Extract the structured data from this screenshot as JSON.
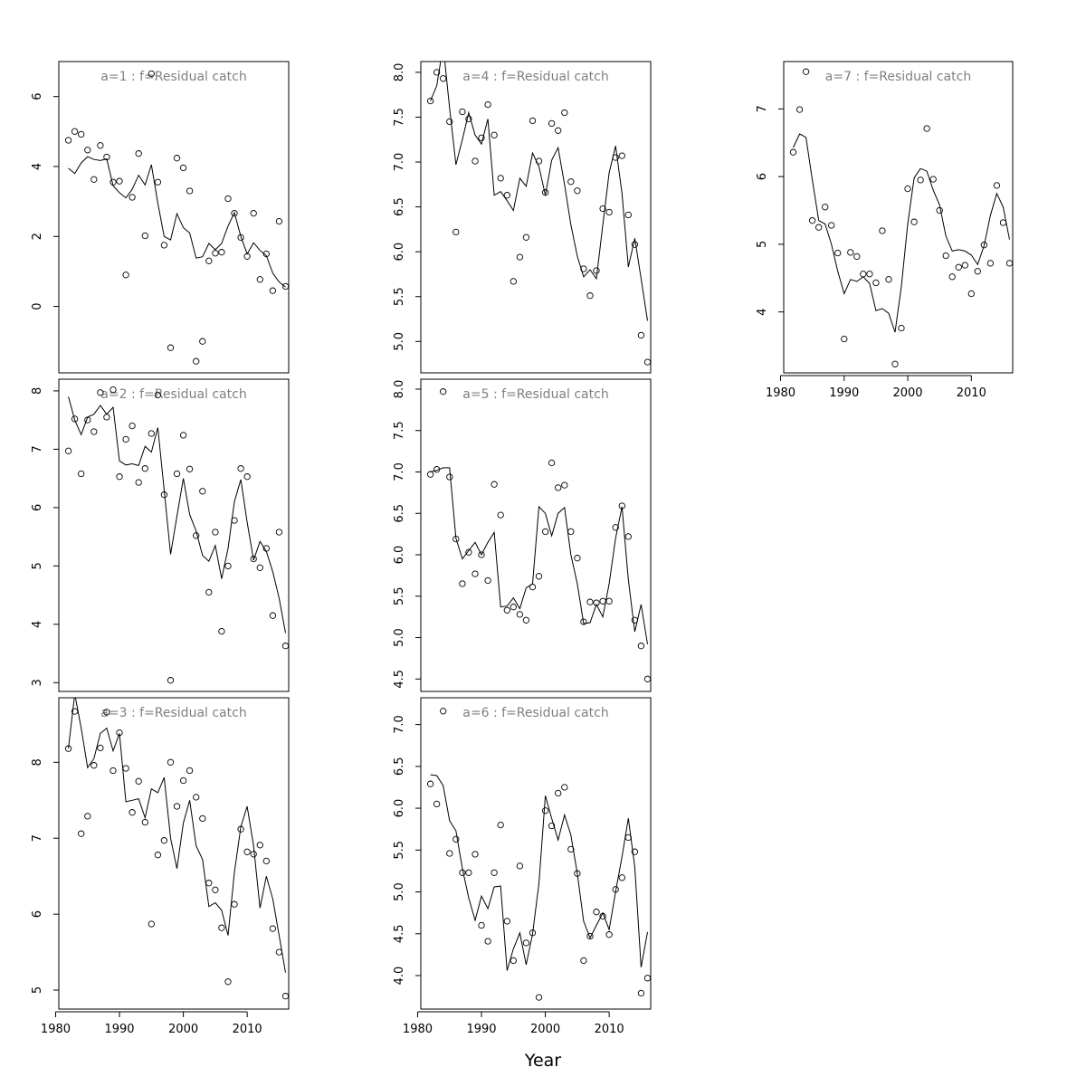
{
  "xlabel": "Year",
  "chart_data": [
    {
      "type": "scatter",
      "title": "a=1  :  f=Residual catch",
      "x_ticks": [
        1980,
        1990,
        2000,
        2010
      ],
      "y_ticks": [
        0,
        2,
        4,
        6
      ],
      "xlim": [
        1980.5,
        2016.5
      ],
      "ylim": [
        -1.9,
        7.0
      ],
      "years_start": 1982,
      "series": [
        {
          "style": "points",
          "values": [
            4.75,
            5.0,
            4.92,
            4.47,
            3.63,
            4.6,
            4.27,
            3.55,
            3.58,
            0.9,
            3.12,
            4.37,
            2.02,
            6.65,
            3.55,
            1.75,
            -1.18,
            4.24,
            3.96,
            3.3,
            -1.57,
            -1.0,
            1.3,
            1.52,
            1.55,
            3.08,
            2.66,
            1.97,
            1.43,
            2.66,
            0.77,
            1.5,
            0.45,
            2.43,
            0.57
          ]
        },
        {
          "style": "line",
          "values": [
            3.95,
            3.8,
            4.1,
            4.28,
            4.2,
            4.17,
            4.22,
            3.45,
            3.25,
            3.1,
            3.35,
            3.75,
            3.47,
            4.05,
            2.95,
            2.0,
            1.9,
            2.65,
            2.25,
            2.1,
            1.38,
            1.42,
            1.8,
            1.62,
            1.8,
            2.3,
            2.68,
            2.0,
            1.5,
            1.82,
            1.6,
            1.45,
            0.95,
            0.7,
            0.55
          ]
        }
      ]
    },
    {
      "type": "scatter",
      "title": "a=2  :  f=Residual catch",
      "x_ticks": [
        1980,
        1990,
        2000,
        2010
      ],
      "y_ticks": [
        3,
        4,
        5,
        6,
        7,
        8
      ],
      "xlim": [
        1980.5,
        2016.5
      ],
      "ylim": [
        2.85,
        8.2
      ],
      "years_start": 1982,
      "series": [
        {
          "style": "points",
          "values": [
            6.97,
            7.52,
            6.58,
            7.5,
            7.3,
            7.97,
            7.55,
            8.02,
            6.53,
            7.17,
            7.4,
            6.43,
            6.67,
            7.27,
            7.93,
            6.22,
            3.04,
            6.58,
            7.24,
            6.66,
            5.52,
            6.28,
            4.55,
            5.58,
            3.88,
            5.0,
            5.78,
            6.67,
            6.53,
            5.12,
            4.97,
            5.3,
            4.15,
            5.58,
            3.63
          ]
        },
        {
          "style": "line",
          "values": [
            7.9,
            7.5,
            7.25,
            7.55,
            7.6,
            7.75,
            7.6,
            7.72,
            6.8,
            6.73,
            6.75,
            6.72,
            7.05,
            6.95,
            7.37,
            6.3,
            5.2,
            5.85,
            6.5,
            5.88,
            5.6,
            5.18,
            5.08,
            5.35,
            4.78,
            5.3,
            6.1,
            6.48,
            5.75,
            5.1,
            5.42,
            5.25,
            4.9,
            4.45,
            3.85
          ]
        }
      ]
    },
    {
      "type": "scatter",
      "title": "a=3  :  f=Residual catch",
      "x_ticks": [
        1980,
        1990,
        2000,
        2010
      ],
      "y_ticks": [
        5,
        6,
        7,
        8
      ],
      "xlim": [
        1980.5,
        2016.5
      ],
      "ylim": [
        4.75,
        8.85
      ],
      "years_start": 1982,
      "series": [
        {
          "style": "points",
          "values": [
            8.18,
            8.67,
            7.06,
            7.29,
            7.96,
            8.19,
            8.66,
            7.89,
            8.39,
            7.92,
            7.34,
            7.75,
            7.21,
            5.87,
            6.78,
            6.97,
            8.0,
            7.42,
            7.76,
            7.89,
            7.54,
            7.26,
            6.41,
            6.32,
            5.82,
            5.11,
            6.13,
            7.12,
            6.82,
            6.79,
            6.91,
            6.7,
            5.81,
            5.5,
            4.92
          ]
        },
        {
          "style": "line",
          "values": [
            8.18,
            8.9,
            8.45,
            7.93,
            8.05,
            8.38,
            8.45,
            8.15,
            8.38,
            7.48,
            7.5,
            7.52,
            7.27,
            7.65,
            7.6,
            7.8,
            7.0,
            6.6,
            7.2,
            7.5,
            6.9,
            6.72,
            6.1,
            6.15,
            6.05,
            5.72,
            6.55,
            7.15,
            7.42,
            6.9,
            6.08,
            6.5,
            6.2,
            5.72,
            5.23
          ]
        }
      ]
    },
    {
      "type": "scatter",
      "title": "a=4  :  f=Residual catch",
      "x_ticks": [
        1980,
        1990,
        2000,
        2010
      ],
      "y_ticks": [
        5.0,
        5.5,
        6.0,
        6.5,
        7.0,
        7.5,
        8.0
      ],
      "y_tick_labels": [
        "5.0",
        "5.5",
        "6.0",
        "6.5",
        "7.0",
        "7.5",
        "8.0"
      ],
      "xlim": [
        1980.5,
        2016.5
      ],
      "ylim": [
        4.65,
        8.12
      ],
      "years_start": 1982,
      "series": [
        {
          "style": "points",
          "values": [
            7.68,
            8.0,
            7.93,
            7.45,
            6.22,
            7.56,
            7.48,
            7.01,
            7.27,
            7.64,
            7.3,
            6.82,
            6.63,
            5.67,
            5.94,
            6.16,
            7.46,
            7.01,
            6.66,
            7.43,
            7.35,
            7.55,
            6.78,
            6.68,
            5.81,
            5.51,
            5.79,
            6.48,
            6.44,
            7.05,
            7.07,
            6.41,
            6.08,
            5.07,
            4.77
          ]
        },
        {
          "style": "line",
          "values": [
            7.68,
            7.85,
            8.3,
            7.6,
            6.97,
            7.25,
            7.55,
            7.3,
            7.2,
            7.48,
            6.63,
            6.67,
            6.57,
            6.46,
            6.82,
            6.73,
            7.1,
            6.95,
            6.63,
            7.02,
            7.16,
            6.75,
            6.3,
            5.95,
            5.72,
            5.8,
            5.7,
            6.3,
            6.88,
            7.18,
            6.65,
            5.83,
            6.15,
            5.7,
            5.23
          ]
        }
      ]
    },
    {
      "type": "scatter",
      "title": "a=5  :  f=Residual catch",
      "x_ticks": [
        1980,
        1990,
        2000,
        2010
      ],
      "y_ticks": [
        4.5,
        5.0,
        5.5,
        6.0,
        6.5,
        7.0,
        7.5,
        8.0
      ],
      "y_tick_labels": [
        "4.5",
        "5.0",
        "5.5",
        "6.0",
        "6.5",
        "7.0",
        "7.5",
        "8.0"
      ],
      "xlim": [
        1980.5,
        2016.5
      ],
      "ylim": [
        4.35,
        8.12
      ],
      "years_start": 1982,
      "series": [
        {
          "style": "points",
          "values": [
            6.97,
            7.03,
            7.97,
            6.94,
            6.19,
            5.65,
            6.03,
            5.77,
            6.0,
            5.69,
            6.85,
            6.48,
            5.33,
            5.37,
            5.28,
            5.21,
            5.61,
            5.74,
            6.28,
            7.11,
            6.81,
            6.84,
            6.28,
            5.96,
            5.19,
            5.43,
            5.42,
            5.44,
            5.44,
            6.33,
            6.59,
            6.22,
            5.21,
            4.9,
            4.5
          ]
        },
        {
          "style": "line",
          "values": [
            7.0,
            7.02,
            7.05,
            7.05,
            6.2,
            5.95,
            6.05,
            6.15,
            6.0,
            6.15,
            6.27,
            5.37,
            5.38,
            5.48,
            5.35,
            5.6,
            5.65,
            6.58,
            6.5,
            6.23,
            6.5,
            6.57,
            6.0,
            5.65,
            5.17,
            5.18,
            5.4,
            5.25,
            5.65,
            6.2,
            6.58,
            5.7,
            5.07,
            5.4,
            4.92
          ]
        }
      ]
    },
    {
      "type": "scatter",
      "title": "a=6  :  f=Residual catch",
      "x_ticks": [
        1980,
        1990,
        2000,
        2010
      ],
      "y_ticks": [
        4.0,
        4.5,
        5.0,
        5.5,
        6.0,
        6.5,
        7.0
      ],
      "y_tick_labels": [
        "4.0",
        "4.5",
        "5.0",
        "5.5",
        "6.0",
        "6.5",
        "7.0"
      ],
      "xlim": [
        1980.5,
        2016.5
      ],
      "ylim": [
        3.6,
        7.32
      ],
      "years_start": 1982,
      "series": [
        {
          "style": "points",
          "values": [
            6.29,
            6.05,
            7.16,
            5.46,
            5.63,
            5.23,
            5.23,
            5.45,
            4.6,
            4.41,
            5.23,
            5.8,
            4.65,
            4.18,
            5.31,
            4.39,
            4.51,
            3.74,
            5.97,
            5.79,
            6.18,
            6.25,
            5.51,
            5.22,
            4.18,
            4.47,
            4.76,
            4.71,
            4.49,
            5.03,
            5.17,
            5.65,
            5.48,
            3.79,
            3.97
          ]
        },
        {
          "style": "line",
          "values": [
            6.4,
            6.39,
            6.27,
            5.85,
            5.73,
            5.28,
            4.93,
            4.66,
            4.95,
            4.8,
            5.06,
            5.07,
            4.06,
            4.32,
            4.51,
            4.13,
            4.5,
            5.1,
            6.15,
            5.88,
            5.62,
            5.92,
            5.68,
            5.22,
            4.65,
            4.45,
            4.6,
            4.75,
            4.55,
            5.0,
            5.42,
            5.88,
            5.3,
            4.1,
            4.52
          ]
        }
      ]
    },
    {
      "type": "scatter",
      "title": "a=7  :  f=Residual catch",
      "x_ticks": [
        1980,
        1990,
        2000,
        2010
      ],
      "y_ticks": [
        4,
        5,
        6,
        7
      ],
      "xlim": [
        1980.5,
        2016.5
      ],
      "ylim": [
        3.1,
        7.7
      ],
      "years_start": 1982,
      "series": [
        {
          "style": "points",
          "values": [
            6.36,
            6.99,
            7.55,
            5.35,
            5.25,
            5.55,
            5.28,
            4.87,
            3.6,
            4.88,
            4.82,
            4.56,
            4.56,
            4.43,
            5.2,
            4.48,
            3.23,
            3.76,
            5.82,
            5.33,
            5.95,
            6.71,
            5.96,
            5.5,
            4.83,
            4.52,
            4.66,
            4.69,
            4.27,
            4.6,
            4.99,
            4.72,
            5.87,
            5.32,
            4.72
          ]
        },
        {
          "style": "line",
          "values": [
            6.43,
            6.63,
            6.58,
            5.95,
            5.35,
            5.3,
            5.0,
            4.6,
            4.27,
            4.48,
            4.45,
            4.52,
            4.42,
            4.02,
            4.05,
            3.98,
            3.7,
            4.38,
            5.3,
            5.98,
            6.12,
            6.08,
            5.8,
            5.58,
            5.12,
            4.9,
            4.92,
            4.9,
            4.84,
            4.7,
            4.98,
            5.43,
            5.75,
            5.55,
            5.07
          ]
        }
      ]
    }
  ]
}
